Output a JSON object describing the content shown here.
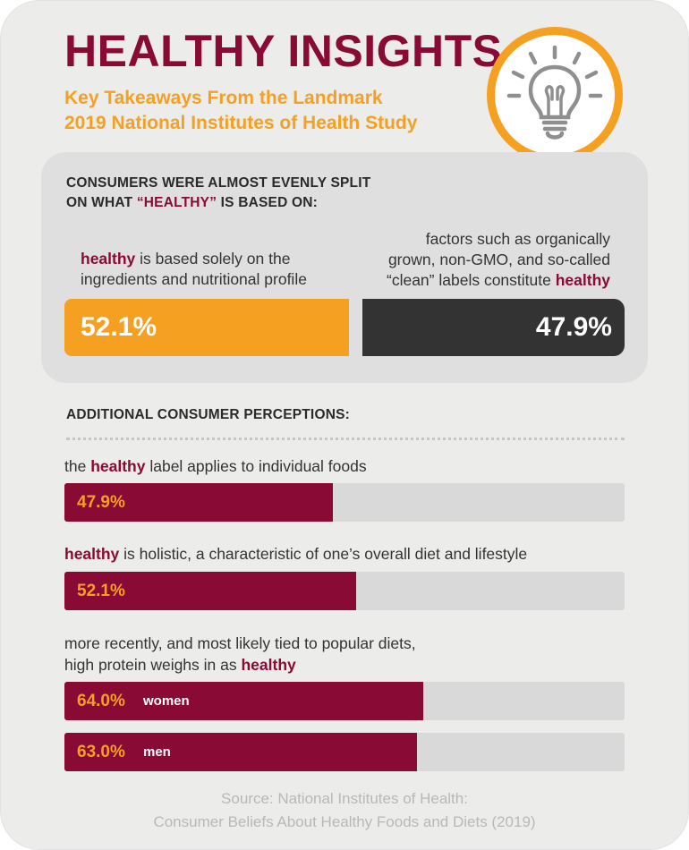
{
  "header": {
    "title": "HEALTHY INSIGHTS",
    "subtitle_line1": "Key Takeaways From the Landmark",
    "subtitle_line2": "2019 National Institutes of Health Study",
    "icon": "lightbulb-icon"
  },
  "split": {
    "heading_line1": "CONSUMERS WERE ALMOST EVENLY SPLIT",
    "heading_line2_pre": "ON WHAT ",
    "heading_line2_hl": "“HEALTHY”",
    "heading_line2_post": " IS BASED ON:",
    "left_kw": "healthy",
    "left_text_1": " is based solely on the",
    "left_text_2": "ingredients and nutritional profile",
    "right_text_1": "factors such as organically",
    "right_text_2": "grown, non-GMO, and so-called",
    "right_text_3": "“clean” labels constitute ",
    "right_kw": "healthy",
    "left_label": "52.1%",
    "right_label": "47.9%"
  },
  "perceptions": {
    "heading": "ADDITIONAL CONSUMER PERCEPTIONS:",
    "p1_pre": "the ",
    "p1_kw": "healthy",
    "p1_post": " label applies to individual foods",
    "p2_kw": "healthy",
    "p2_post": " is holistic, a characteristic of one’s overall diet and lifestyle",
    "p3_line1": "more recently, and most likely tied to popular diets,",
    "p3_line2_pre": "high protein weighs in as ",
    "p3_kw": "healthy",
    "bars": [
      {
        "label": "47.9%",
        "value": 47.9,
        "tag": ""
      },
      {
        "label": "52.1%",
        "value": 52.1,
        "tag": ""
      },
      {
        "label": "64.0%",
        "value": 64.0,
        "tag": "women"
      },
      {
        "label": "63.0%",
        "value": 63.0,
        "tag": "men"
      }
    ]
  },
  "source": {
    "line1": "Source: National Institutes of Health:",
    "line2": "Consumer Beliefs About Healthy Foods and Diets (2019)"
  },
  "colors": {
    "maroon": "#8a0a36",
    "orange": "#f5a020",
    "dark": "#333333",
    "track": "#d9d9d9"
  },
  "chart_data": [
    {
      "type": "bar",
      "title": "CONSUMERS WERE ALMOST EVENLY SPLIT ON WHAT “HEALTHY” IS BASED ON:",
      "categories": [
        "healthy is based solely on the ingredients and nutritional profile",
        "factors such as organically grown, non-GMO, and so-called “clean” labels constitute healthy"
      ],
      "values": [
        52.1,
        47.9
      ],
      "unit": "%"
    },
    {
      "type": "bar",
      "title": "ADDITIONAL CONSUMER PERCEPTIONS:",
      "categories": [
        "the healthy label applies to individual foods",
        "healthy is holistic, a characteristic of one’s overall diet and lifestyle",
        "high protein weighs in as healthy — women",
        "high protein weighs in as healthy — men"
      ],
      "values": [
        47.9,
        52.1,
        64.0,
        63.0
      ],
      "unit": "%",
      "ylim": [
        0,
        100
      ]
    }
  ]
}
